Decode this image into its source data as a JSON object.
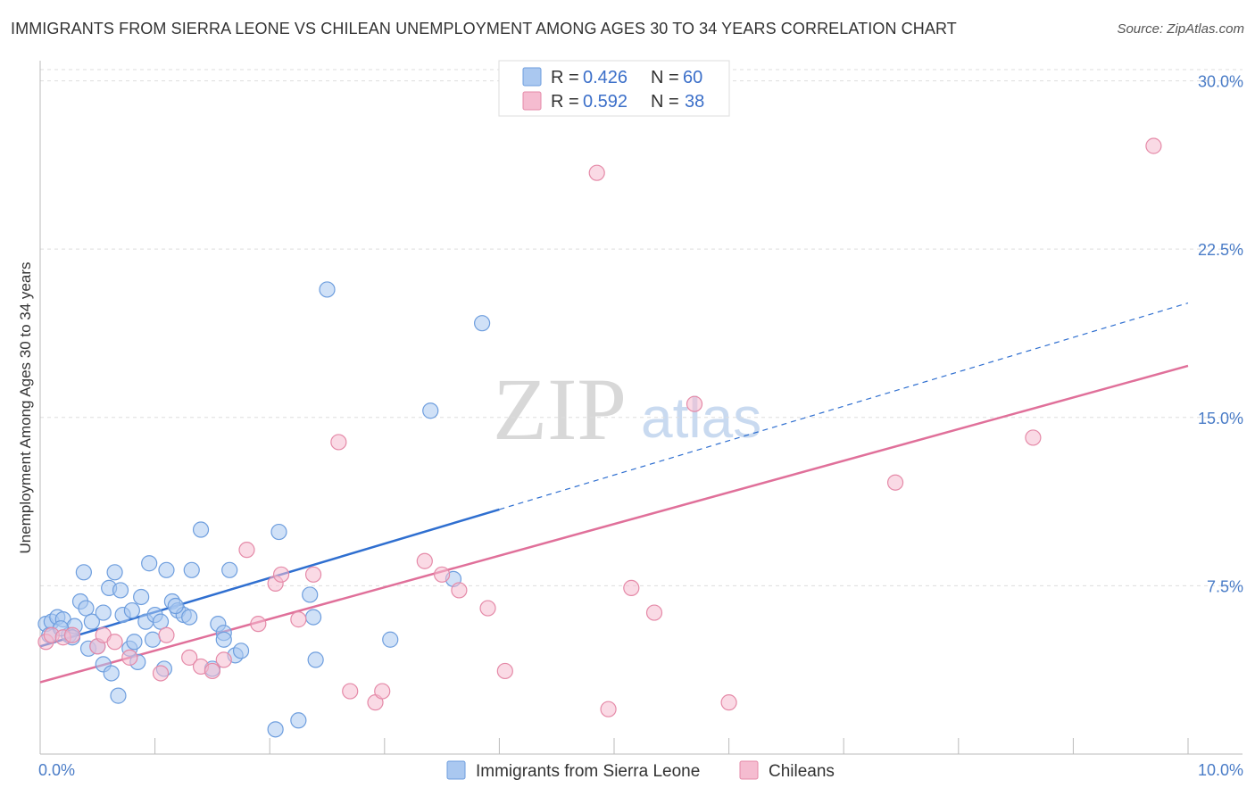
{
  "title": "IMMIGRANTS FROM SIERRA LEONE VS CHILEAN UNEMPLOYMENT AMONG AGES 30 TO 34 YEARS CORRELATION CHART",
  "source": "Source: ZipAtlas.com",
  "watermark": {
    "zip": "ZIP",
    "atlas": "atlas"
  },
  "colors": {
    "blue_fill": "#aac8f0",
    "blue_stroke": "#6e9ede",
    "blue_line": "#2f6fd0",
    "pink_fill": "#f5bcd0",
    "pink_stroke": "#e58aa8",
    "pink_line": "#e0709a",
    "grid": "#dddddd",
    "axis": "#bbbbbb",
    "tick_text": "#4a7cc7"
  },
  "legend": {
    "rows": [
      {
        "r_label": "R =",
        "r_value": "0.426",
        "n_label": "N =",
        "n_value": "60"
      },
      {
        "r_label": "R =",
        "r_value": "0.592",
        "n_label": "N =",
        "n_value": "38"
      }
    ]
  },
  "chart_data": {
    "type": "scatter",
    "title": "IMMIGRANTS FROM SIERRA LEONE VS CHILEAN UNEMPLOYMENT AMONG AGES 30 TO 34 YEARS CORRELATION CHART",
    "xlabel": "",
    "ylabel": "Unemployment Among Ages 30 to 34 years",
    "xlim": [
      0,
      10
    ],
    "ylim": [
      0,
      30.5
    ],
    "x_tick_labels": {
      "min": "0.0%",
      "max": "10.0%"
    },
    "y_ticks": [
      {
        "value": 7.5,
        "label": "7.5%"
      },
      {
        "value": 15.0,
        "label": "15.0%"
      },
      {
        "value": 22.5,
        "label": "22.5%"
      },
      {
        "value": 30.0,
        "label": "30.0%"
      }
    ],
    "series": [
      {
        "name": "Immigrants from Sierra Leone",
        "color": "blue",
        "trend": {
          "x0": 0.0,
          "y0": 4.8,
          "x1": 4.0,
          "y1": 10.9,
          "dash_x1": 10.0,
          "dash_y1": 20.1
        },
        "points": [
          [
            0.05,
            5.8
          ],
          [
            0.1,
            5.9
          ],
          [
            0.15,
            6.1
          ],
          [
            0.2,
            6.0
          ],
          [
            0.25,
            5.3
          ],
          [
            0.3,
            5.7
          ],
          [
            0.35,
            6.8
          ],
          [
            0.38,
            8.1
          ],
          [
            0.4,
            6.5
          ],
          [
            0.42,
            4.7
          ],
          [
            0.45,
            5.9
          ],
          [
            0.5,
            4.8
          ],
          [
            0.55,
            6.3
          ],
          [
            0.55,
            4.0
          ],
          [
            0.6,
            7.4
          ],
          [
            0.62,
            3.6
          ],
          [
            0.65,
            8.1
          ],
          [
            0.68,
            2.6
          ],
          [
            0.7,
            7.3
          ],
          [
            0.72,
            6.2
          ],
          [
            0.78,
            4.7
          ],
          [
            0.8,
            6.4
          ],
          [
            0.82,
            5.0
          ],
          [
            0.85,
            4.1
          ],
          [
            0.88,
            7.0
          ],
          [
            0.92,
            5.9
          ],
          [
            0.95,
            8.5
          ],
          [
            0.98,
            5.1
          ],
          [
            1.0,
            6.2
          ],
          [
            1.05,
            5.9
          ],
          [
            1.08,
            3.8
          ],
          [
            1.1,
            8.2
          ],
          [
            1.15,
            6.8
          ],
          [
            1.2,
            6.4
          ],
          [
            1.25,
            6.2
          ],
          [
            1.3,
            6.1
          ],
          [
            1.32,
            8.2
          ],
          [
            1.4,
            10.0
          ],
          [
            1.5,
            3.8
          ],
          [
            1.55,
            5.8
          ],
          [
            1.6,
            5.4
          ],
          [
            1.6,
            5.1
          ],
          [
            1.65,
            8.2
          ],
          [
            1.7,
            4.4
          ],
          [
            1.75,
            4.6
          ],
          [
            2.05,
            1.1
          ],
          [
            2.08,
            9.9
          ],
          [
            2.25,
            1.5
          ],
          [
            2.35,
            7.1
          ],
          [
            2.38,
            6.1
          ],
          [
            2.4,
            4.2
          ],
          [
            2.5,
            20.7
          ],
          [
            3.05,
            5.1
          ],
          [
            3.4,
            15.3
          ],
          [
            3.6,
            7.8
          ],
          [
            3.85,
            19.2
          ],
          [
            0.08,
            5.3
          ],
          [
            0.18,
            5.6
          ],
          [
            1.18,
            6.6
          ],
          [
            0.28,
            5.2
          ]
        ]
      },
      {
        "name": "Chileans",
        "color": "pink",
        "trend": {
          "x0": 0.0,
          "y0": 3.2,
          "x1": 10.0,
          "y1": 17.3
        },
        "points": [
          [
            0.05,
            5.0
          ],
          [
            0.1,
            5.3
          ],
          [
            0.2,
            5.2
          ],
          [
            0.28,
            5.3
          ],
          [
            0.5,
            4.8
          ],
          [
            0.55,
            5.3
          ],
          [
            0.65,
            5.0
          ],
          [
            0.78,
            4.3
          ],
          [
            1.05,
            3.6
          ],
          [
            1.1,
            5.3
          ],
          [
            1.3,
            4.3
          ],
          [
            1.4,
            3.9
          ],
          [
            1.5,
            3.7
          ],
          [
            1.6,
            4.2
          ],
          [
            1.8,
            9.1
          ],
          [
            1.9,
            5.8
          ],
          [
            2.05,
            7.6
          ],
          [
            2.1,
            8.0
          ],
          [
            2.25,
            6.0
          ],
          [
            2.38,
            8.0
          ],
          [
            2.6,
            13.9
          ],
          [
            2.7,
            2.8
          ],
          [
            2.92,
            2.3
          ],
          [
            2.98,
            2.8
          ],
          [
            3.35,
            8.6
          ],
          [
            3.5,
            8.0
          ],
          [
            3.65,
            7.3
          ],
          [
            3.9,
            6.5
          ],
          [
            4.05,
            3.7
          ],
          [
            4.85,
            25.9
          ],
          [
            4.95,
            2.0
          ],
          [
            5.15,
            7.4
          ],
          [
            5.35,
            6.3
          ],
          [
            5.7,
            15.6
          ],
          [
            6.0,
            2.3
          ],
          [
            7.45,
            12.1
          ],
          [
            8.65,
            14.1
          ],
          [
            9.7,
            27.1
          ]
        ]
      }
    ],
    "legend_entries": [
      "Immigrants from Sierra Leone",
      "Chileans"
    ]
  }
}
